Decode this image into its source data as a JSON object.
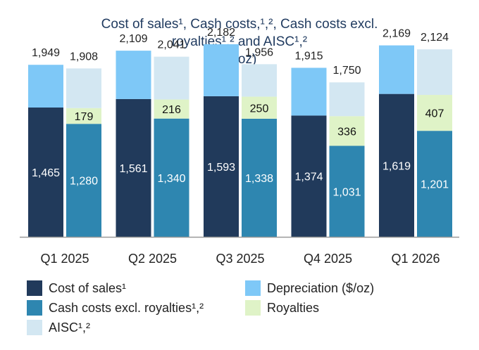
{
  "title_lines": [
    "Cost of sales¹, Cash costs,¹,², Cash costs excl.",
    "royalties¹,² and AISC¹,²",
    "($/oz)"
  ],
  "colors": {
    "cost_of_sales": "#213a5b",
    "depreciation": "#7ec8f7",
    "cash_costs_excl_royalties": "#2e86b0",
    "royalties": "#dff3c7",
    "aisc": "#d3e7f2",
    "axis": "#999999",
    "text": "#222222"
  },
  "legend": [
    {
      "label": "Cost of sales¹",
      "color_key": "cost_of_sales"
    },
    {
      "label": "Depreciation ($/oz)",
      "color_key": "depreciation"
    },
    {
      "label": "Cash costs excl. royalties¹,²",
      "color_key": "cash_costs_excl_royalties"
    },
    {
      "label": "Royalties",
      "color_key": "royalties"
    },
    {
      "label": "AISC¹,²",
      "color_key": "aisc"
    }
  ],
  "chart_data": {
    "type": "bar",
    "stacked": true,
    "categories": [
      "Q1 2025",
      "Q2 2025",
      "Q3 2025",
      "Q4 2025",
      "Q1 2026"
    ],
    "ylim": [
      0,
      2500
    ],
    "grid": false,
    "legend_position": "bottom",
    "bars_per_category": [
      {
        "stack": "left",
        "series": [
          {
            "name": "Cost of sales¹",
            "values": [
              1465,
              1561,
              1593,
              1374,
              1619
            ],
            "labels": [
              "1,465",
              "1,561",
              "1,593",
              "1,374",
              "1,619"
            ]
          },
          {
            "name": "Depreciation ($/oz)",
            "values": [
              484,
              548,
              589,
              541,
              550
            ]
          }
        ],
        "totals": [
          1949,
          2109,
          2182,
          1915,
          2169
        ],
        "total_labels": [
          "1,949",
          "2,109",
          "2,182",
          "1,915",
          "2,169"
        ]
      },
      {
        "stack": "right",
        "series": [
          {
            "name": "Cash costs excl. royalties¹,²",
            "values": [
              1280,
              1340,
              1338,
              1031,
              1201
            ],
            "labels": [
              "1,280",
              "1,340",
              "1,338",
              "1,031",
              "1,201"
            ]
          },
          {
            "name": "Royalties",
            "values": [
              179,
              216,
              250,
              336,
              407
            ],
            "labels": [
              "179",
              "216",
              "250",
              "336",
              "407"
            ]
          },
          {
            "name": "AISC¹,²",
            "values": [
              449,
              485,
              368,
              383,
              516
            ]
          }
        ],
        "totals": [
          1908,
          2041,
          1956,
          1750,
          2124
        ],
        "total_labels": [
          "1,908",
          "2,041",
          "1,956",
          "1,750",
          "2,124"
        ]
      }
    ]
  }
}
